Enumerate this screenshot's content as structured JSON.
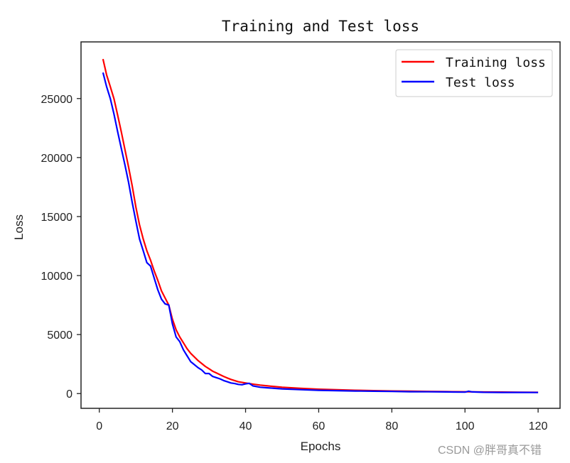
{
  "chart_data": {
    "type": "line",
    "title": "Training and Test loss",
    "xlabel": "Epochs",
    "ylabel": "Loss",
    "xlim": [
      -5,
      126
    ],
    "ylim": [
      -1250,
      29800
    ],
    "xticks": [
      0,
      20,
      40,
      60,
      80,
      100,
      120
    ],
    "yticks": [
      0,
      5000,
      10000,
      15000,
      20000,
      25000
    ],
    "grid": false,
    "legend_position": "upper right",
    "series": [
      {
        "name": "Training loss",
        "color": "#ff0000",
        "x": [
          1,
          2,
          3,
          4,
          5,
          6,
          7,
          8,
          9,
          10,
          11,
          12,
          13,
          14,
          15,
          16,
          17,
          18,
          19,
          20,
          21,
          22,
          23,
          24,
          25,
          26,
          27,
          28,
          29,
          30,
          31,
          32,
          33,
          34,
          35,
          36,
          37,
          38,
          39,
          40,
          42,
          44,
          46,
          48,
          50,
          55,
          60,
          65,
          70,
          75,
          80,
          85,
          90,
          95,
          100,
          105,
          110,
          115,
          120
        ],
        "values": [
          28350,
          27000,
          26000,
          25000,
          23600,
          22200,
          20700,
          19200,
          17600,
          15800,
          14300,
          13100,
          12100,
          11300,
          10400,
          9600,
          8700,
          8100,
          7500,
          6300,
          5400,
          4800,
          4300,
          3800,
          3400,
          3100,
          2800,
          2550,
          2300,
          2100,
          1900,
          1750,
          1600,
          1450,
          1320,
          1200,
          1100,
          1000,
          950,
          900,
          800,
          720,
          650,
          590,
          540,
          440,
          370,
          320,
          280,
          250,
          220,
          200,
          180,
          165,
          150,
          135,
          125,
          115,
          105
        ]
      },
      {
        "name": "Test loss",
        "color": "#0000ff",
        "x": [
          1,
          2,
          3,
          4,
          5,
          6,
          7,
          8,
          9,
          10,
          11,
          12,
          13,
          14,
          15,
          16,
          17,
          18,
          19,
          20,
          21,
          22,
          23,
          24,
          25,
          26,
          27,
          28,
          29,
          30,
          31,
          32,
          33,
          34,
          35,
          36,
          37,
          38,
          39,
          40,
          41,
          42,
          44,
          46,
          48,
          50,
          55,
          60,
          65,
          70,
          75,
          80,
          85,
          90,
          95,
          100,
          101,
          102,
          105,
          110,
          115,
          120
        ],
        "values": [
          27200,
          26000,
          25000,
          23700,
          22200,
          20800,
          19400,
          17900,
          16200,
          14600,
          13100,
          12100,
          11100,
          10800,
          9800,
          8800,
          8000,
          7600,
          7500,
          5900,
          4800,
          4400,
          3700,
          3200,
          2700,
          2450,
          2200,
          2000,
          1700,
          1700,
          1450,
          1350,
          1250,
          1100,
          1000,
          900,
          850,
          780,
          750,
          820,
          870,
          650,
          540,
          490,
          440,
          400,
          330,
          280,
          250,
          220,
          200,
          180,
          160,
          150,
          140,
          120,
          200,
          140,
          110,
          100,
          95,
          90
        ]
      }
    ]
  },
  "watermark": "CSDN @胖哥真不错"
}
